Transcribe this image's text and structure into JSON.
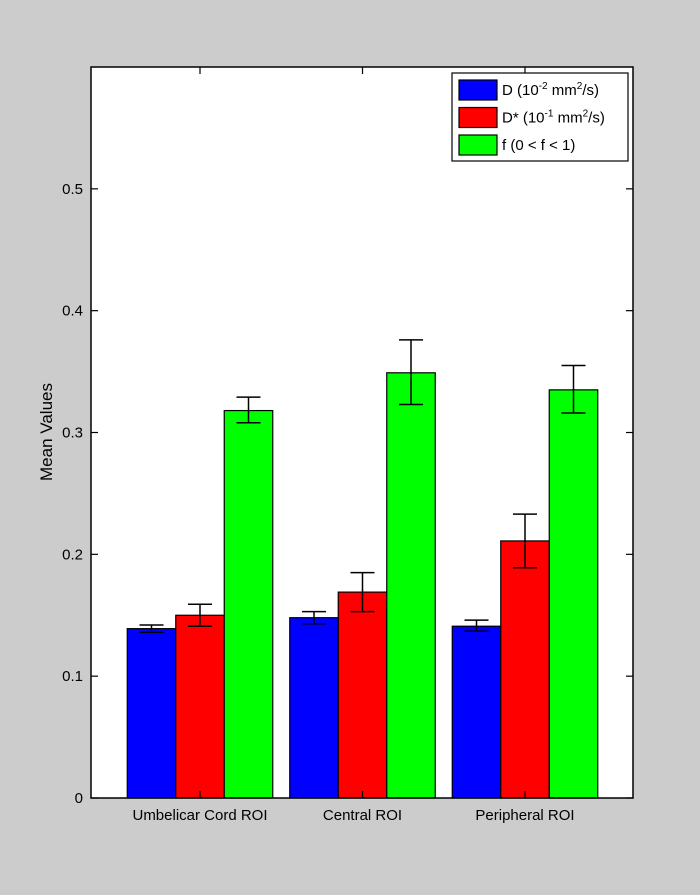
{
  "chart_data": {
    "type": "bar",
    "title": "",
    "xlabel": "",
    "ylabel": "Mean Values",
    "ylim": [
      0,
      0.6
    ],
    "yticks": [
      {
        "value": 0,
        "label": "0"
      },
      {
        "value": 0.1,
        "label": "0.1"
      },
      {
        "value": 0.2,
        "label": "0.2"
      },
      {
        "value": 0.3,
        "label": "0.3"
      },
      {
        "value": 0.4,
        "label": "0.4"
      },
      {
        "value": 0.5,
        "label": "0.5"
      }
    ],
    "categories": [
      "Umbelicar Cord ROI",
      "Central ROI",
      "Peripheral ROI"
    ],
    "series": [
      {
        "name": "D",
        "legend": {
          "prefix": "D  (10",
          "sup1": "-2",
          "mid": " mm",
          "sup2": "2",
          "suffix": "/s)"
        },
        "color": "#0000ff",
        "values": [
          0.139,
          0.148,
          0.141
        ],
        "errors_low": [
          0.136,
          0.143,
          0.137
        ],
        "errors_high": [
          0.142,
          0.153,
          0.146
        ]
      },
      {
        "name": "D*",
        "legend": {
          "prefix": "D* (10",
          "sup1": "-1",
          "mid": " mm",
          "sup2": "2",
          "suffix": "/s)"
        },
        "color": "#ff0000",
        "values": [
          0.15,
          0.169,
          0.211
        ],
        "errors_low": [
          0.141,
          0.153,
          0.189
        ],
        "errors_high": [
          0.159,
          0.185,
          0.233
        ]
      },
      {
        "name": "f",
        "legend": {
          "prefix": "f (0 < f < 1)",
          "sup1": "",
          "mid": "",
          "sup2": "",
          "suffix": ""
        },
        "color": "#00ff00",
        "values": [
          0.318,
          0.349,
          0.335
        ],
        "errors_low": [
          0.308,
          0.323,
          0.316
        ],
        "errors_high": [
          0.329,
          0.376,
          0.355
        ]
      }
    ],
    "legend_position": "top-right",
    "grid": false
  }
}
